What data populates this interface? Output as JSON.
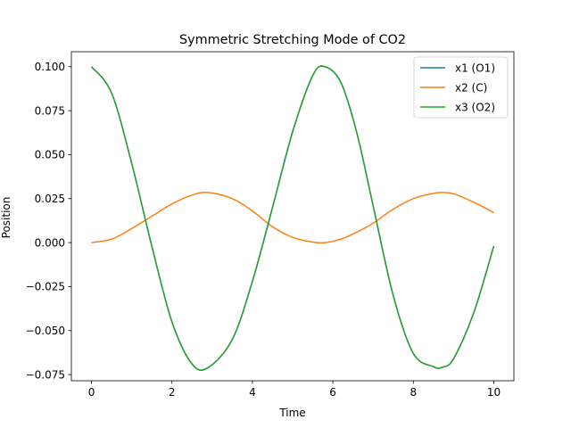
{
  "chart_data": {
    "type": "line",
    "title": "Symmetric Stretching Mode of CO2",
    "xlabel": "Time",
    "ylabel": "Position",
    "xlim": [
      -0.5,
      10.5
    ],
    "ylim": [
      -0.0785,
      0.1085
    ],
    "xticks": [
      0,
      2,
      4,
      6,
      8,
      10
    ],
    "xtick_labels": [
      "0",
      "2",
      "4",
      "6",
      "8",
      "10"
    ],
    "yticks": [
      -0.075,
      -0.05,
      -0.025,
      0.0,
      0.025,
      0.05,
      0.075,
      0.1
    ],
    "ytick_labels": [
      "−0.075",
      "−0.050",
      "−0.025",
      "0.000",
      "0.025",
      "0.050",
      "0.075",
      "0.100"
    ],
    "grid": false,
    "legend_position": "upper right",
    "series": [
      {
        "name": "x1 (O1)",
        "color": "#1f77b4",
        "x": [
          0,
          0.5,
          1.0,
          1.5,
          2.0,
          2.5,
          2.9,
          3.5,
          4.0,
          4.5,
          5.0,
          5.5,
          5.8,
          6.2,
          6.6,
          7.0,
          7.5,
          8.0,
          8.5,
          8.7,
          9.0,
          9.5,
          10.0
        ],
        "y": [
          0.1,
          0.085,
          0.045,
          -0.002,
          -0.045,
          -0.069,
          -0.071,
          -0.055,
          -0.022,
          0.02,
          0.063,
          0.095,
          0.1,
          0.091,
          0.062,
          0.021,
          -0.03,
          -0.063,
          -0.0705,
          -0.071,
          -0.066,
          -0.04,
          -0.002
        ]
      },
      {
        "name": "x2 (C)",
        "color": "#ff7f0e",
        "x": [
          0,
          0.5,
          1.0,
          1.5,
          2.0,
          2.5,
          2.9,
          3.5,
          4.0,
          4.5,
          5.0,
          5.5,
          5.8,
          6.2,
          6.6,
          7.0,
          7.5,
          8.0,
          8.5,
          8.7,
          9.0,
          9.5,
          10.0
        ],
        "y": [
          0.0,
          0.002,
          0.008,
          0.015,
          0.022,
          0.027,
          0.0285,
          0.025,
          0.018,
          0.009,
          0.003,
          0.0003,
          0.0,
          0.002,
          0.006,
          0.011,
          0.019,
          0.025,
          0.028,
          0.0285,
          0.0277,
          0.023,
          0.017
        ]
      },
      {
        "name": "x3 (O2)",
        "color": "#2ca02c",
        "x": [
          0,
          0.5,
          1.0,
          1.5,
          2.0,
          2.5,
          2.9,
          3.5,
          4.0,
          4.5,
          5.0,
          5.5,
          5.8,
          6.2,
          6.6,
          7.0,
          7.5,
          8.0,
          8.5,
          8.7,
          9.0,
          9.5,
          10.0
        ],
        "y": [
          0.1,
          0.085,
          0.045,
          -0.002,
          -0.045,
          -0.069,
          -0.071,
          -0.055,
          -0.022,
          0.02,
          0.063,
          0.095,
          0.1,
          0.091,
          0.062,
          0.021,
          -0.03,
          -0.063,
          -0.0705,
          -0.071,
          -0.066,
          -0.04,
          -0.002
        ]
      }
    ]
  }
}
